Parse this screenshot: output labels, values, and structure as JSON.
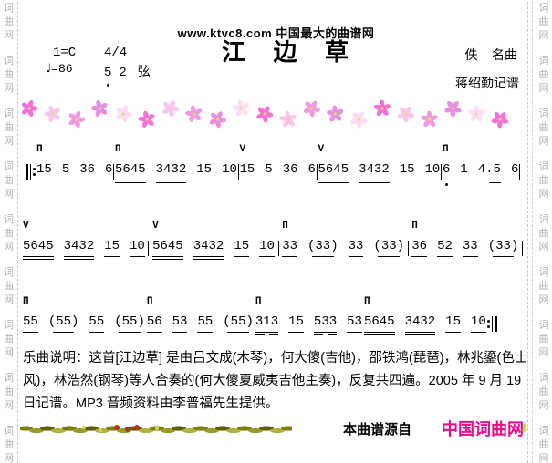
{
  "watermark": {
    "chars": [
      "词",
      "曲",
      "网"
    ],
    "groups": 9
  },
  "header": {
    "site_line": "www.ktvc8.com 中国最大的曲谱网",
    "title": "江 边 草",
    "key": "1=C",
    "meter": "4/4",
    "tempo_note": "♩",
    "tempo_value": "=86",
    "tuning_low": "5",
    "tuning_high": "2",
    "tuning_label": "弦",
    "composer": "佚    名曲",
    "transcriber": "蒋绍勤记谱"
  },
  "symbols": {
    "down_bow": "П",
    "up_bow": "V"
  },
  "score": {
    "lines": [
      {
        "start": "repeat",
        "end": "bar",
        "measures": [
          {
            "bow": "down",
            "groups": [
              {
                "t": "15",
                "u": 1
              },
              {
                "t": "5"
              },
              {
                "t": "36",
                "u": 1
              },
              {
                "t": "6"
              }
            ]
          },
          {
            "bow": "down",
            "groups": [
              {
                "t": "5645",
                "u": 2
              },
              {
                "t": "3432",
                "u": 2
              },
              {
                "t": "15",
                "u": 1
              },
              {
                "t": "10",
                "u": 1
              }
            ]
          },
          {
            "bow": "up",
            "groups": [
              {
                "t": "15",
                "u": 1
              },
              {
                "t": "5"
              },
              {
                "t": "36",
                "u": 1
              },
              {
                "t": "6"
              }
            ]
          },
          {
            "bow": "up",
            "groups": [
              {
                "t": "5645",
                "u": 2
              },
              {
                "t": "3432",
                "u": 2
              },
              {
                "t": "15",
                "u": 1
              },
              {
                "t": "10",
                "u": 1
              }
            ]
          },
          {
            "bow": "down",
            "groups": [
              {
                "t": "6",
                "dot": "below"
              },
              {
                "t": "1"
              },
              {
                "t": "4.5",
                "u": 1,
                "u2": "right"
              },
              {
                "t": "6"
              }
            ]
          }
        ]
      },
      {
        "start": "none",
        "end": "bar",
        "measures": [
          {
            "bow": "up",
            "groups": [
              {
                "t": "5645",
                "u": 2
              },
              {
                "t": "3432",
                "u": 2
              },
              {
                "t": "15",
                "u": 1
              },
              {
                "t": "10",
                "u": 1
              }
            ]
          },
          {
            "bow": "up",
            "groups": [
              {
                "t": "5645",
                "u": 2
              },
              {
                "t": "3432",
                "u": 2
              },
              {
                "t": "15",
                "u": 1
              },
              {
                "t": "10",
                "u": 1
              }
            ]
          },
          {
            "bow": "down",
            "groups": [
              {
                "t": "33",
                "u": 1
              },
              {
                "t": "(33)",
                "u": 1
              },
              {
                "t": "33",
                "u": 1
              },
              {
                "t": "(33)",
                "u": 1
              }
            ]
          },
          {
            "bow": "down",
            "groups": [
              {
                "t": "36",
                "u": 1
              },
              {
                "t": "52",
                "u": 1
              },
              {
                "t": "33",
                "u": 1
              },
              {
                "t": "(33)",
                "u": 1
              }
            ]
          }
        ]
      },
      {
        "start": "none",
        "end": "repeat",
        "measures": [
          {
            "bow": "down",
            "groups": [
              {
                "t": "55",
                "u": 1
              },
              {
                "t": "(55)",
                "u": 1
              },
              {
                "t": "55",
                "u": 1
              },
              {
                "t": "(55)",
                "u": 1
              }
            ]
          },
          {
            "bow": "down",
            "groups": [
              {
                "t": "56",
                "u": 1
              },
              {
                "t": "53",
                "u": 1
              },
              {
                "t": "55",
                "u": 1
              },
              {
                "t": "(55)",
                "u": 1
              }
            ]
          },
          {
            "bow": "down",
            "groups": [
              {
                "t": "313",
                "u": 1,
                "u2": "lr"
              },
              {
                "t": "15",
                "u": 1
              },
              {
                "t": "533",
                "u": 1,
                "u2": "lr"
              },
              {
                "t": "53",
                "u": 1
              }
            ]
          },
          {
            "bow": "down",
            "groups": [
              {
                "t": "5645",
                "u": 2
              },
              {
                "t": "3432",
                "u": 2
              },
              {
                "t": "15",
                "u": 1
              },
              {
                "t": "10",
                "u": 1
              }
            ]
          }
        ]
      }
    ]
  },
  "notes": {
    "text": "乐曲说明：这首[江边草] 是由吕文成(木琴)，何大傻(吉他)，邵铁鸿(琵琶)，林兆鎏(色士风)，林浩然(钢琴)等人合奏的(何大傻夏威夷吉他主奏)，反复共四遍。2005 年 9 月 19 日记谱。MP3 音频资料由李普福先生提供。"
  },
  "footer": {
    "source_label": "本曲谱源自",
    "site_name": "中国词曲网"
  },
  "colors": {
    "site_name_pink": "#ee0a8c",
    "watermark_gray": "#b2b2b2",
    "flower_center": "#e3d87e",
    "flower_palette": [
      "#f272d6",
      "#fac6ee",
      "#f29ae0",
      "#e98fe2",
      "#fddcf4"
    ],
    "grass_palette": [
      "#7c7c10",
      "#9a9a28",
      "#5e5e08",
      "#b0b040"
    ],
    "grass_red": "#b83020",
    "grass_yellow": "#d6d655",
    "yellow_tick": "#cfd23a"
  }
}
